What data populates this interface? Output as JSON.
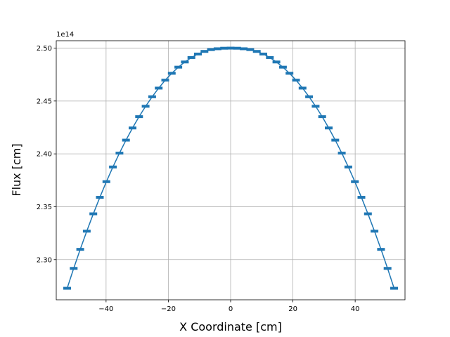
{
  "chart_data": {
    "type": "line",
    "xlabel": "X Coordinate [cm]",
    "ylabel": "Flux [cm]",
    "y_offset_label": "1e14",
    "y_scale": 100000000000000.0,
    "xlim": [
      -56,
      56
    ],
    "ylim": [
      2.262,
      2.507
    ],
    "grid": true,
    "marker": "error-bar caps",
    "series_color": "#1f77b4",
    "x_ticks": [
      -40,
      -20,
      0,
      20,
      40
    ],
    "x_tick_labels": [
      "−40",
      "−20",
      "0",
      "20",
      "40"
    ],
    "y_ticks": [
      2.3,
      2.35,
      2.4,
      2.45,
      2.5
    ],
    "y_tick_labels": [
      "2.30",
      "2.35",
      "2.40",
      "2.45",
      "2.50"
    ],
    "series": [
      {
        "x": [
          -52.5,
          -50.4,
          -48.3,
          -46.2,
          -44.1,
          -42.0,
          -39.9,
          -37.8,
          -35.7,
          -33.6,
          -31.5,
          -29.4,
          -27.3,
          -25.2,
          -23.1,
          -21.0,
          -18.9,
          -16.8,
          -14.7,
          -12.6,
          -10.5,
          -8.4,
          -6.3,
          -4.2,
          -2.1,
          0.0,
          2.1,
          4.2,
          6.3,
          8.4,
          10.5,
          12.6,
          14.7,
          16.8,
          18.9,
          21.0,
          23.1,
          25.2,
          27.3,
          29.4,
          31.5,
          33.6,
          35.7,
          37.8,
          39.9,
          42.0,
          44.1,
          46.2,
          48.3,
          50.4,
          52.5
        ],
        "y": [
          2.2729,
          2.2917,
          2.3097,
          2.3269,
          2.3433,
          2.3589,
          2.3737,
          2.3876,
          2.4007,
          2.413,
          2.4245,
          2.4352,
          2.445,
          2.454,
          2.4622,
          2.4697,
          2.4762,
          2.482,
          2.4869,
          2.4911,
          2.4944,
          2.4969,
          2.4986,
          2.4994,
          2.4999,
          2.5,
          2.4999,
          2.4994,
          2.4986,
          2.4969,
          2.4944,
          2.4911,
          2.4869,
          2.482,
          2.4762,
          2.4697,
          2.4622,
          2.454,
          2.445,
          2.4352,
          2.4245,
          2.413,
          2.4007,
          2.3876,
          2.3737,
          2.3589,
          2.3433,
          2.3269,
          2.3097,
          2.2917,
          2.2729
        ]
      }
    ]
  }
}
